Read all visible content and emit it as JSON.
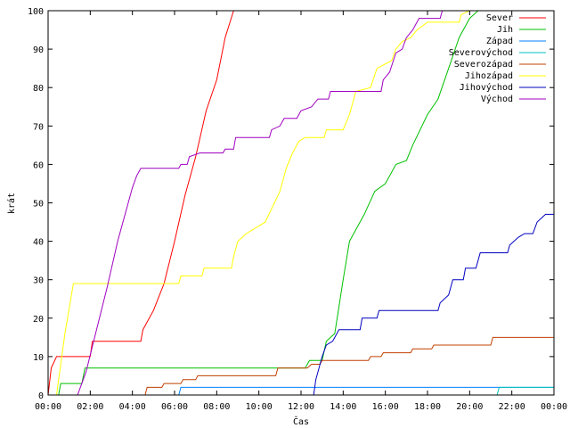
{
  "chart_data": {
    "type": "line",
    "xlabel": "Čas",
    "ylabel": "krát",
    "xlim": [
      0,
      24
    ],
    "ylim": [
      0,
      100
    ],
    "x_ticks": [
      "00:00",
      "02:00",
      "04:00",
      "06:00",
      "08:00",
      "10:00",
      "12:00",
      "14:00",
      "16:00",
      "18:00",
      "20:00",
      "22:00",
      "00:00"
    ],
    "x_tick_values": [
      0,
      2,
      4,
      6,
      8,
      10,
      12,
      14,
      16,
      18,
      20,
      22,
      24
    ],
    "y_ticks": [
      0,
      10,
      20,
      30,
      40,
      50,
      60,
      70,
      80,
      90,
      100
    ],
    "grid": false,
    "legend": "top-right",
    "series": [
      {
        "name": "Sever",
        "color": "#ff0000",
        "points": [
          [
            0,
            0
          ],
          [
            0.15,
            7
          ],
          [
            0.4,
            10
          ],
          [
            2.0,
            10
          ],
          [
            2.1,
            14
          ],
          [
            4.4,
            14
          ],
          [
            4.5,
            17
          ],
          [
            5.0,
            22
          ],
          [
            5.5,
            29
          ],
          [
            6.0,
            40
          ],
          [
            6.5,
            52
          ],
          [
            7.0,
            62
          ],
          [
            7.5,
            74
          ],
          [
            8.0,
            82
          ],
          [
            8.4,
            93
          ],
          [
            8.8,
            100
          ]
        ]
      },
      {
        "name": "Jih",
        "color": "#00c000",
        "points": [
          [
            0,
            0
          ],
          [
            0.5,
            0
          ],
          [
            0.6,
            3
          ],
          [
            1.6,
            3
          ],
          [
            1.75,
            7
          ],
          [
            12.2,
            7
          ],
          [
            12.4,
            9
          ],
          [
            13.0,
            9
          ],
          [
            13.2,
            14
          ],
          [
            13.6,
            16
          ],
          [
            14.0,
            30
          ],
          [
            14.3,
            40
          ],
          [
            15.0,
            47
          ],
          [
            15.5,
            53
          ],
          [
            16.0,
            55
          ],
          [
            16.5,
            60
          ],
          [
            17.0,
            61
          ],
          [
            17.3,
            65
          ],
          [
            18.0,
            73
          ],
          [
            18.5,
            77
          ],
          [
            19.0,
            85
          ],
          [
            19.5,
            93
          ],
          [
            20.0,
            98
          ],
          [
            20.4,
            100
          ]
        ]
      },
      {
        "name": "Západ",
        "color": "#0080ff",
        "points": [
          [
            0,
            0
          ],
          [
            6.2,
            0
          ],
          [
            6.3,
            2
          ],
          [
            24,
            2
          ]
        ]
      },
      {
        "name": "Severovýchod",
        "color": "#00c0c0",
        "points": [
          [
            0,
            0
          ],
          [
            21.3,
            0
          ],
          [
            21.4,
            2
          ],
          [
            24,
            2
          ]
        ]
      },
      {
        "name": "Severozápad",
        "color": "#c04000",
        "points": [
          [
            0,
            0
          ],
          [
            4.6,
            0
          ],
          [
            4.7,
            2
          ],
          [
            5.4,
            2
          ],
          [
            5.5,
            3
          ],
          [
            6.3,
            3
          ],
          [
            6.4,
            4
          ],
          [
            7.0,
            4
          ],
          [
            7.1,
            5
          ],
          [
            10.8,
            5
          ],
          [
            10.9,
            7
          ],
          [
            12.3,
            7
          ],
          [
            12.5,
            8
          ],
          [
            12.9,
            8
          ],
          [
            13.0,
            9
          ],
          [
            15.2,
            9
          ],
          [
            15.3,
            10
          ],
          [
            15.8,
            10
          ],
          [
            15.9,
            11
          ],
          [
            17.2,
            11
          ],
          [
            17.3,
            12
          ],
          [
            18.2,
            12
          ],
          [
            18.3,
            13
          ],
          [
            21.0,
            13
          ],
          [
            21.1,
            15
          ],
          [
            24,
            15
          ]
        ]
      },
      {
        "name": "Jihozápad",
        "color": "#ffff00",
        "points": [
          [
            0,
            0
          ],
          [
            0.4,
            0
          ],
          [
            0.8,
            16
          ],
          [
            1.2,
            29
          ],
          [
            6.2,
            29
          ],
          [
            6.3,
            31
          ],
          [
            7.3,
            31
          ],
          [
            7.4,
            33
          ],
          [
            8.7,
            33
          ],
          [
            8.8,
            36
          ],
          [
            9.0,
            40
          ],
          [
            9.4,
            42
          ],
          [
            10.0,
            44
          ],
          [
            10.3,
            45
          ],
          [
            11.0,
            53
          ],
          [
            11.3,
            59
          ],
          [
            11.6,
            63
          ],
          [
            11.9,
            66
          ],
          [
            12.2,
            67
          ],
          [
            13.1,
            67
          ],
          [
            13.2,
            69
          ],
          [
            14.0,
            69
          ],
          [
            14.3,
            73
          ],
          [
            14.6,
            79
          ],
          [
            15.3,
            80
          ],
          [
            15.6,
            85
          ],
          [
            16.3,
            87
          ],
          [
            16.5,
            90
          ],
          [
            16.8,
            92
          ],
          [
            17.2,
            93
          ],
          [
            17.5,
            95
          ],
          [
            18.0,
            97
          ],
          [
            19.5,
            97
          ],
          [
            19.6,
            99
          ],
          [
            20.0,
            100
          ],
          [
            24,
            100
          ]
        ]
      },
      {
        "name": "Jihovýchod",
        "color": "#0000c0",
        "points": [
          [
            0,
            0
          ],
          [
            12.6,
            0
          ],
          [
            12.7,
            4
          ],
          [
            13.0,
            10
          ],
          [
            13.2,
            13
          ],
          [
            13.5,
            14
          ],
          [
            13.8,
            17
          ],
          [
            14.8,
            17
          ],
          [
            14.9,
            20
          ],
          [
            15.6,
            20
          ],
          [
            15.7,
            22
          ],
          [
            18.5,
            22
          ],
          [
            18.6,
            24
          ],
          [
            19.0,
            26
          ],
          [
            19.2,
            30
          ],
          [
            19.7,
            30
          ],
          [
            19.8,
            33
          ],
          [
            20.3,
            33
          ],
          [
            20.5,
            37
          ],
          [
            21.8,
            37
          ],
          [
            21.9,
            39
          ],
          [
            22.3,
            41
          ],
          [
            22.6,
            42
          ],
          [
            23.0,
            42
          ],
          [
            23.2,
            45
          ],
          [
            23.6,
            47
          ],
          [
            24,
            47
          ]
        ]
      },
      {
        "name": "Východ",
        "color": "#a000c0",
        "points": [
          [
            0,
            0
          ],
          [
            1.4,
            0
          ],
          [
            1.8,
            6
          ],
          [
            2.3,
            17
          ],
          [
            2.8,
            28
          ],
          [
            3.3,
            40
          ],
          [
            3.7,
            48
          ],
          [
            4.0,
            54
          ],
          [
            4.2,
            57
          ],
          [
            4.4,
            59
          ],
          [
            6.2,
            59
          ],
          [
            6.3,
            60
          ],
          [
            6.6,
            60
          ],
          [
            6.7,
            62
          ],
          [
            7.2,
            63
          ],
          [
            8.3,
            63
          ],
          [
            8.4,
            64
          ],
          [
            8.8,
            64
          ],
          [
            8.9,
            67
          ],
          [
            10.5,
            67
          ],
          [
            10.6,
            69
          ],
          [
            11.0,
            70
          ],
          [
            11.2,
            72
          ],
          [
            11.8,
            72
          ],
          [
            12.0,
            74
          ],
          [
            12.5,
            75
          ],
          [
            12.8,
            77
          ],
          [
            13.3,
            77
          ],
          [
            13.4,
            79
          ],
          [
            15.8,
            79
          ],
          [
            15.9,
            82
          ],
          [
            16.2,
            84
          ],
          [
            16.5,
            89
          ],
          [
            16.8,
            90
          ],
          [
            17.0,
            93
          ],
          [
            17.3,
            95
          ],
          [
            17.6,
            98
          ],
          [
            18.6,
            98
          ],
          [
            18.7,
            100
          ],
          [
            24,
            100
          ]
        ]
      }
    ]
  }
}
